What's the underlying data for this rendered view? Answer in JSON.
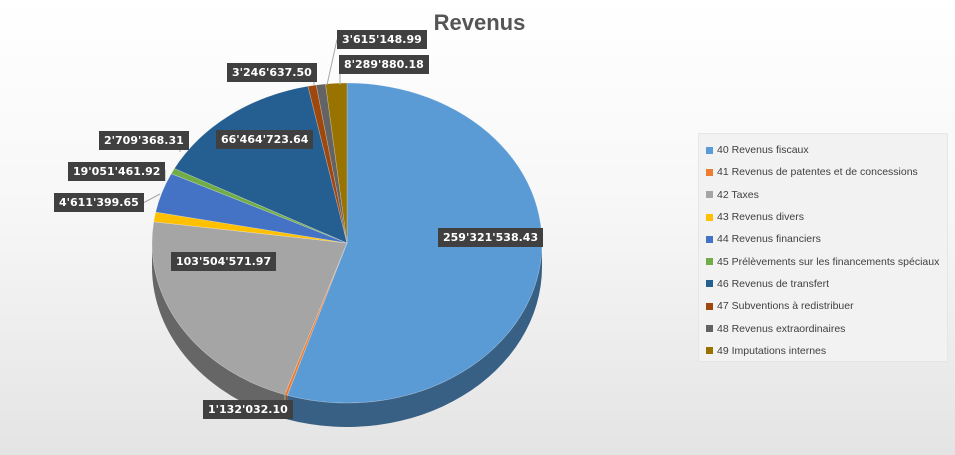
{
  "chart_data": {
    "type": "pie",
    "title": "Revenus",
    "legend_position": "right",
    "slices": [
      {
        "label": "40 Revenus fiscaux",
        "value": 259321538.43,
        "value_label": "259'321'538.43",
        "color": "#5B9BD5"
      },
      {
        "label": "41 Revenus de patentes et de concessions",
        "value": 1132032.1,
        "value_label": "1'132'032.10",
        "color": "#ED7D31"
      },
      {
        "label": "42 Taxes",
        "value": 103504571.97,
        "value_label": "103'504'571.97",
        "color": "#A5A5A5"
      },
      {
        "label": "43 Revenus divers",
        "value": 4611399.65,
        "value_label": "4'611'399.65",
        "color": "#FFC000"
      },
      {
        "label": "44 Revenus financiers",
        "value": 19051461.92,
        "value_label": "19'051'461.92",
        "color": "#4472C4"
      },
      {
        "label": "45 Prélèvements sur les financements spéciaux",
        "value": 2709368.31,
        "value_label": "2'709'368.31",
        "color": "#70AD47"
      },
      {
        "label": "46 Revenus de transfert",
        "value": 66464723.64,
        "value_label": "66'464'723.64",
        "color": "#255E91"
      },
      {
        "label": "47 Subventions à redistribuer",
        "value": 3246637.5,
        "value_label": "3'246'637.50",
        "color": "#9E480E"
      },
      {
        "label": "48 Revenus extraordinaires",
        "value": 3615148.99,
        "value_label": "3'615'148.99",
        "color": "#636363"
      },
      {
        "label": "49 Imputations internes",
        "value": 8289880.18,
        "value_label": "8'289'880.18",
        "color": "#997300"
      }
    ]
  }
}
